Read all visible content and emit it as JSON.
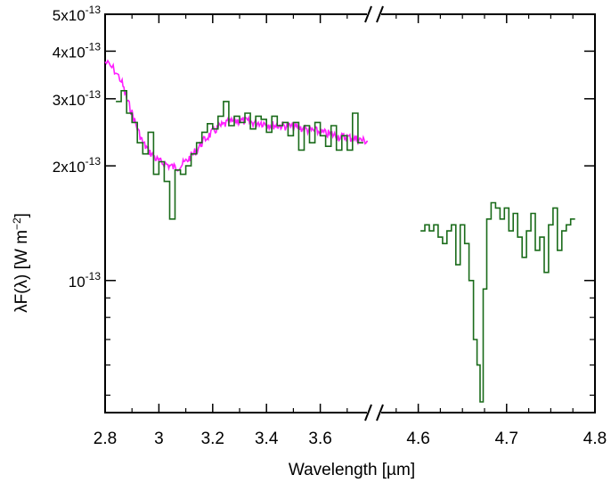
{
  "chart_data": {
    "type": "line",
    "xlabel": "Wavelength [µm]",
    "ylabel_parts": {
      "main": "λF(λ)  [W m",
      "sup": "−2",
      "end": "]"
    },
    "yscale": "log",
    "ylim": [
      4.5e-14,
      5e-13
    ],
    "x_panels": [
      {
        "xlim": [
          2.8,
          3.8
        ],
        "ticks": [
          2.8,
          3.0,
          3.2,
          3.4,
          3.6
        ],
        "tick_labels": [
          "2.8",
          "3",
          "3.2",
          "3.4",
          "3.6"
        ]
      },
      {
        "xlim": [
          4.55,
          4.8
        ],
        "ticks": [
          4.6,
          4.7,
          4.8
        ],
        "tick_labels": [
          "4.6",
          "4.7",
          "4.8"
        ]
      }
    ],
    "y_tick_labels": [
      {
        "value": 5e-13,
        "mantissa": "5x10",
        "exp": "-13"
      },
      {
        "value": 4e-13,
        "mantissa": "4x10",
        "exp": "-13"
      },
      {
        "value": 3e-13,
        "mantissa": "3x10",
        "exp": "-13"
      },
      {
        "value": 2e-13,
        "mantissa": "2x10",
        "exp": "-13"
      },
      {
        "value": 1e-13,
        "mantissa": "10",
        "exp": "-13"
      }
    ],
    "series": [
      {
        "color": "#1a6b1a",
        "style": "step",
        "x": [
          2.85,
          2.87,
          2.89,
          2.91,
          2.93,
          2.95,
          2.97,
          2.99,
          3.01,
          3.03,
          3.05,
          3.07,
          3.09,
          3.11,
          3.13,
          3.15,
          3.17,
          3.19,
          3.21,
          3.23,
          3.25,
          3.27,
          3.29,
          3.31,
          3.33,
          3.35,
          3.37,
          3.39,
          3.41,
          3.43,
          3.45,
          3.47,
          3.49,
          3.51,
          3.53,
          3.55,
          3.57,
          3.59,
          3.61,
          3.63,
          3.65,
          3.67,
          3.69,
          3.71,
          3.73,
          3.75
        ],
        "y": [
          2.95e-13,
          3.15e-13,
          2.75e-13,
          2.6e-13,
          2.3e-13,
          2.15e-13,
          2.45e-13,
          1.9e-13,
          2.05e-13,
          1.82e-13,
          1.45e-13,
          1.95e-13,
          1.9e-13,
          2e-13,
          2.15e-13,
          2.3e-13,
          2.45e-13,
          2.58e-13,
          2.5e-13,
          2.7e-13,
          2.95e-13,
          2.55e-13,
          2.7e-13,
          2.6e-13,
          2.75e-13,
          2.5e-13,
          2.7e-13,
          2.65e-13,
          2.45e-13,
          2.7e-13,
          2.55e-13,
          2.6e-13,
          2.4e-13,
          2.6e-13,
          2.2e-13,
          2.55e-13,
          2.3e-13,
          2.6e-13,
          2.4e-13,
          2.25e-13,
          2.55e-13,
          2.2e-13,
          2.4e-13,
          2.2e-13,
          2.75e-13,
          2.3e-13
        ],
        "x2": [
          4.605,
          4.61,
          4.615,
          4.62,
          4.625,
          4.63,
          4.635,
          4.64,
          4.645,
          4.65,
          4.655,
          4.66,
          4.665,
          4.668,
          4.672,
          4.675,
          4.68,
          4.685,
          4.69,
          4.695,
          4.7,
          4.705,
          4.71,
          4.715,
          4.72,
          4.725,
          4.73,
          4.735,
          4.74,
          4.745,
          4.75,
          4.755,
          4.76,
          4.765,
          4.77,
          4.775
        ],
        "y2": [
          1.35e-13,
          1.4e-13,
          1.35e-13,
          1.4e-13,
          1.3e-13,
          1.25e-13,
          1.35e-13,
          1.4e-13,
          1.1e-13,
          1.4e-13,
          1.25e-13,
          1e-13,
          7e-14,
          6e-14,
          4.8e-14,
          9.5e-14,
          1.45e-13,
          1.6e-13,
          1.55e-13,
          1.45e-13,
          1.55e-13,
          1.35e-13,
          1.5e-13,
          1.3e-13,
          1.15e-13,
          1.35e-13,
          1.5e-13,
          1.2e-13,
          1.3e-13,
          1.05e-13,
          1.4e-13,
          1.55e-13,
          1.2e-13,
          1.35e-13,
          1.4e-13,
          1.45e-13
        ]
      },
      {
        "color": "#ff1fff",
        "style": "noisy-line",
        "x": [
          2.8,
          2.83,
          2.86,
          2.88,
          2.9,
          2.92,
          2.94,
          2.96,
          2.98,
          3.0,
          3.02,
          3.04,
          3.06,
          3.08,
          3.1,
          3.12,
          3.14,
          3.16,
          3.18,
          3.2,
          3.22,
          3.24,
          3.26,
          3.28,
          3.3,
          3.32,
          3.34,
          3.36,
          3.38,
          3.4,
          3.42,
          3.44,
          3.46,
          3.48,
          3.5,
          3.52,
          3.54,
          3.56,
          3.58,
          3.6,
          3.62,
          3.64,
          3.66,
          3.68,
          3.7,
          3.72,
          3.74,
          3.76,
          3.78
        ],
        "y": [
          3.75e-13,
          3.6e-13,
          3.35e-13,
          3e-13,
          2.75e-13,
          2.5e-13,
          2.3e-13,
          2.2e-13,
          2.12e-13,
          2.05e-13,
          2.03e-13,
          2e-13,
          1.98e-13,
          2e-13,
          2.05e-13,
          2.12e-13,
          2.2e-13,
          2.3e-13,
          2.38e-13,
          2.45e-13,
          2.52e-13,
          2.56e-13,
          2.6e-13,
          2.62e-13,
          2.63e-13,
          2.62e-13,
          2.6e-13,
          2.6e-13,
          2.6e-13,
          2.58e-13,
          2.56e-13,
          2.55e-13,
          2.55e-13,
          2.54e-13,
          2.53e-13,
          2.52e-13,
          2.5e-13,
          2.48e-13,
          2.47e-13,
          2.45e-13,
          2.43e-13,
          2.42e-13,
          2.4e-13,
          2.38e-13,
          2.38e-13,
          2.36e-13,
          2.35e-13,
          2.33e-13,
          2.32e-13
        ]
      }
    ]
  }
}
